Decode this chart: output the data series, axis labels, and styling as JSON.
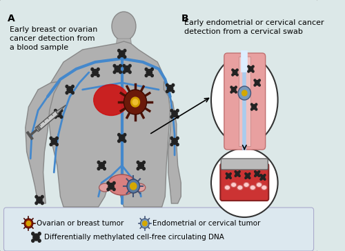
{
  "bg_color": "#dce8e8",
  "legend_bg": "#dce8ef",
  "border_color": "#999999",
  "body_color": "#b0b0b0",
  "body_outline": "#888888",
  "vein_color": "#4488cc",
  "label_A": "A",
  "label_B": "B",
  "text_A": "Early breast or ovarian\ncancer detection from\na blood sample",
  "text_B": "Early endometrial or cervical cancer\ndetection from a cervical swab",
  "legend1_text": "Ovarian or breast tumor",
  "legend2_text": "Endometrial or cervical tumor",
  "legend3_text": "Differentially methylated cell-free circulating DNA",
  "tumor_red": "#cc2222",
  "tumor_outline": "#8b1a1a",
  "tumor_gold": "#d4a000",
  "cervical_blue": "#7799cc",
  "lymph_color": "#222222",
  "syringe_color": "#666666",
  "title_fontsize": 8,
  "legend_fontsize": 7.5,
  "label_fontsize": 10
}
